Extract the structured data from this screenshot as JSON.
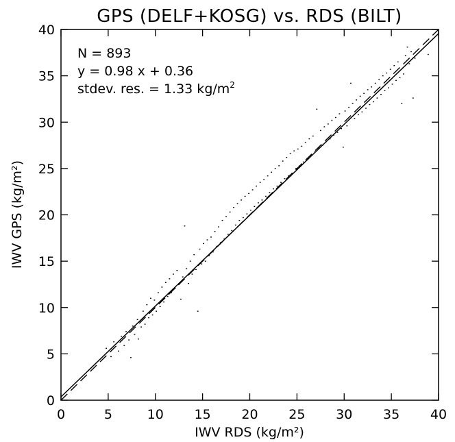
{
  "chart_data": {
    "type": "scatter",
    "title": "GPS (DELF+KOSG) vs. RDS (BILT)",
    "xlabel": "IWV RDS (kg/m²)",
    "ylabel": "IWV GPS (kg/m²)",
    "xlim": [
      0,
      40
    ],
    "ylim": [
      0,
      40
    ],
    "x_ticks": [
      "0",
      "5",
      "10",
      "15",
      "20",
      "25",
      "30",
      "35",
      "40"
    ],
    "y_ticks": [
      "0",
      "5",
      "10",
      "15",
      "20",
      "25",
      "30",
      "35",
      "40"
    ],
    "annotations": {
      "n": "N =  893",
      "fit": "y = 0.98 x + 0.36",
      "stdev_prefix": "stdev. res. = 1.33 kg/m",
      "stdev_sup": "2"
    },
    "fit_line": {
      "slope": 0.98,
      "intercept": 0.36,
      "style": "solid"
    },
    "identity_line": {
      "slope": 1,
      "intercept": 0,
      "style": "dashed"
    },
    "n_points": 893,
    "stdev_res": 1.33,
    "points": [
      [
        4.8,
        5.6
      ],
      [
        5.3,
        4.7
      ],
      [
        5.6,
        6.3
      ],
      [
        6.1,
        5.3
      ],
      [
        6.4,
        6.9
      ],
      [
        6.7,
        5.9
      ],
      [
        6.9,
        7.4
      ],
      [
        7.2,
        6.5
      ],
      [
        7.4,
        4.6
      ],
      [
        7.6,
        8.0
      ],
      [
        7.8,
        7.1
      ],
      [
        8.1,
        8.7
      ],
      [
        8.2,
        6.6
      ],
      [
        8.5,
        7.9
      ],
      [
        8.7,
        9.6
      ],
      [
        8.9,
        8.2
      ],
      [
        9.1,
        10.3
      ],
      [
        9.3,
        8.9
      ],
      [
        9.5,
        11.0
      ],
      [
        9.7,
        9.2
      ],
      [
        9.9,
        10.8
      ],
      [
        10.1,
        9.6
      ],
      [
        10.3,
        11.6
      ],
      [
        10.5,
        10.1
      ],
      [
        10.7,
        12.2
      ],
      [
        10.9,
        10.6
      ],
      [
        11.1,
        12.7
      ],
      [
        11.3,
        11.2
      ],
      [
        11.5,
        13.1
      ],
      [
        11.7,
        11.6
      ],
      [
        11.9,
        13.6
      ],
      [
        12.1,
        12.1
      ],
      [
        12.3,
        14.0
      ],
      [
        12.5,
        12.5
      ],
      [
        12.7,
        10.9
      ],
      [
        12.9,
        13.3
      ],
      [
        13.1,
        18.8
      ],
      [
        13.3,
        14.2
      ],
      [
        13.5,
        12.6
      ],
      [
        13.7,
        15.0
      ],
      [
        13.9,
        13.6
      ],
      [
        14.1,
        15.7
      ],
      [
        14.3,
        14.1
      ],
      [
        14.5,
        9.6
      ],
      [
        14.7,
        16.3
      ],
      [
        14.9,
        14.7
      ],
      [
        15.1,
        16.9
      ],
      [
        15.3,
        15.0
      ],
      [
        15.5,
        17.3
      ],
      [
        15.7,
        15.6
      ],
      [
        15.9,
        17.6
      ],
      [
        16.1,
        16.0
      ],
      [
        16.3,
        18.2
      ],
      [
        16.5,
        16.6
      ],
      [
        16.7,
        18.7
      ],
      [
        16.9,
        17.0
      ],
      [
        17.1,
        19.4
      ],
      [
        17.3,
        17.4
      ],
      [
        17.5,
        19.8
      ],
      [
        17.7,
        17.9
      ],
      [
        17.9,
        20.3
      ],
      [
        18.1,
        18.3
      ],
      [
        18.3,
        20.8
      ],
      [
        18.5,
        18.9
      ],
      [
        18.7,
        21.2
      ],
      [
        18.9,
        19.4
      ],
      [
        19.1,
        21.6
      ],
      [
        19.3,
        19.7
      ],
      [
        19.5,
        22.0
      ],
      [
        19.7,
        20.1
      ],
      [
        19.9,
        22.3
      ],
      [
        20.1,
        20.5
      ],
      [
        20.3,
        22.7
      ],
      [
        20.5,
        20.9
      ],
      [
        20.7,
        23.1
      ],
      [
        20.9,
        21.3
      ],
      [
        21.1,
        23.5
      ],
      [
        21.3,
        21.6
      ],
      [
        21.5,
        23.8
      ],
      [
        21.7,
        22.0
      ],
      [
        21.9,
        24.2
      ],
      [
        22.1,
        22.4
      ],
      [
        22.3,
        24.6
      ],
      [
        22.5,
        22.8
      ],
      [
        22.7,
        25.0
      ],
      [
        22.9,
        23.1
      ],
      [
        23.1,
        25.3
      ],
      [
        23.3,
        23.5
      ],
      [
        23.5,
        25.8
      ],
      [
        23.7,
        23.9
      ],
      [
        23.9,
        26.2
      ],
      [
        24.1,
        24.2
      ],
      [
        24.3,
        26.6
      ],
      [
        24.5,
        24.5
      ],
      [
        24.7,
        26.9
      ],
      [
        24.9,
        25.0
      ],
      [
        25.1,
        27.1
      ],
      [
        25.3,
        25.3
      ],
      [
        25.5,
        27.4
      ],
      [
        25.7,
        25.7
      ],
      [
        25.9,
        27.8
      ],
      [
        26.1,
        26.1
      ],
      [
        26.3,
        28.2
      ],
      [
        26.5,
        26.4
      ],
      [
        26.7,
        28.5
      ],
      [
        26.9,
        26.8
      ],
      [
        27.1,
        31.4
      ],
      [
        27.3,
        27.2
      ],
      [
        27.5,
        29.1
      ],
      [
        27.7,
        27.5
      ],
      [
        27.9,
        29.5
      ],
      [
        28.1,
        27.9
      ],
      [
        28.3,
        29.8
      ],
      [
        28.5,
        28.2
      ],
      [
        28.7,
        30.2
      ],
      [
        28.9,
        28.6
      ],
      [
        29.1,
        30.5
      ],
      [
        29.3,
        28.9
      ],
      [
        29.5,
        30.9
      ],
      [
        29.7,
        29.3
      ],
      [
        29.9,
        27.3
      ],
      [
        30.1,
        31.2
      ],
      [
        30.3,
        29.6
      ],
      [
        30.5,
        31.6
      ],
      [
        30.7,
        34.2
      ],
      [
        30.9,
        32.0
      ],
      [
        31.1,
        30.4
      ],
      [
        31.3,
        32.4
      ],
      [
        31.5,
        30.8
      ],
      [
        31.7,
        32.8
      ],
      [
        31.9,
        31.1
      ],
      [
        32.1,
        33.1
      ],
      [
        32.3,
        31.5
      ],
      [
        32.5,
        33.5
      ],
      [
        32.7,
        31.9
      ],
      [
        32.9,
        33.8
      ],
      [
        33.1,
        32.2
      ],
      [
        33.3,
        34.2
      ],
      [
        33.5,
        32.6
      ],
      [
        33.7,
        34.6
      ],
      [
        33.9,
        33.0
      ],
      [
        34.1,
        35.0
      ],
      [
        34.3,
        33.4
      ],
      [
        34.5,
        35.3
      ],
      [
        34.7,
        33.7
      ],
      [
        34.9,
        35.7
      ],
      [
        35.1,
        34.1
      ],
      [
        35.3,
        36.1
      ],
      [
        35.5,
        34.5
      ],
      [
        35.7,
        36.5
      ],
      [
        35.9,
        34.8
      ],
      [
        36.1,
        32.0
      ],
      [
        36.3,
        35.2
      ],
      [
        36.5,
        37.2
      ],
      [
        36.7,
        38.1
      ],
      [
        36.9,
        36.3
      ],
      [
        37.1,
        37.6
      ],
      [
        37.3,
        32.6
      ],
      [
        37.5,
        36.9
      ],
      [
        38.9,
        37.3
      ]
    ]
  }
}
